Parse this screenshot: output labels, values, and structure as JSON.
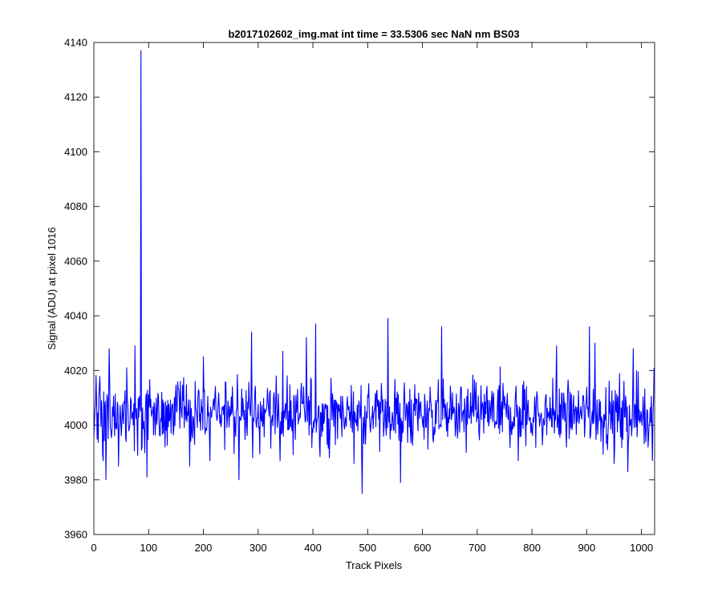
{
  "chart_data": {
    "type": "line",
    "title": "b2017102602_img.mat int time = 33.5306 sec  NaN nm BS03",
    "xlabel": "Track Pixels",
    "ylabel": "Signal (ADU) at pixel 1016",
    "xlim": [
      0,
      1024
    ],
    "ylim": [
      3960,
      4140
    ],
    "xticks": [
      0,
      100,
      200,
      300,
      400,
      500,
      600,
      700,
      800,
      900,
      1000
    ],
    "yticks": [
      3960,
      3980,
      4000,
      4020,
      4040,
      4060,
      4080,
      4100,
      4120,
      4140
    ],
    "grid": false,
    "legend": "none",
    "series": [
      {
        "color": "#0000ff",
        "noise_baseline": 4004,
        "noise_amplitude": 6,
        "notable_points": [
          {
            "x": 0,
            "y": 3996
          },
          {
            "x": 10,
            "y": 4014
          },
          {
            "x": 17,
            "y": 3987
          },
          {
            "x": 22,
            "y": 3980
          },
          {
            "x": 28,
            "y": 4028
          },
          {
            "x": 45,
            "y": 3985
          },
          {
            "x": 60,
            "y": 4021
          },
          {
            "x": 75,
            "y": 4029
          },
          {
            "x": 80,
            "y": 3989
          },
          {
            "x": 86,
            "y": 4137
          },
          {
            "x": 88,
            "y": 3992
          },
          {
            "x": 97,
            "y": 3981
          },
          {
            "x": 130,
            "y": 3992
          },
          {
            "x": 175,
            "y": 3985
          },
          {
            "x": 200,
            "y": 4025
          },
          {
            "x": 212,
            "y": 3987
          },
          {
            "x": 265,
            "y": 3980
          },
          {
            "x": 288,
            "y": 4034
          },
          {
            "x": 345,
            "y": 4027
          },
          {
            "x": 388,
            "y": 4032
          },
          {
            "x": 405,
            "y": 4037
          },
          {
            "x": 430,
            "y": 3988
          },
          {
            "x": 490,
            "y": 3975
          },
          {
            "x": 537,
            "y": 4039
          },
          {
            "x": 560,
            "y": 3979
          },
          {
            "x": 635,
            "y": 4036
          },
          {
            "x": 680,
            "y": 3990
          },
          {
            "x": 775,
            "y": 3987
          },
          {
            "x": 845,
            "y": 4029
          },
          {
            "x": 905,
            "y": 4036
          },
          {
            "x": 915,
            "y": 4030
          },
          {
            "x": 950,
            "y": 3986
          },
          {
            "x": 975,
            "y": 3983
          },
          {
            "x": 985,
            "y": 4028
          },
          {
            "x": 1020,
            "y": 3987
          },
          {
            "x": 1023,
            "y": 4021
          }
        ]
      }
    ]
  }
}
